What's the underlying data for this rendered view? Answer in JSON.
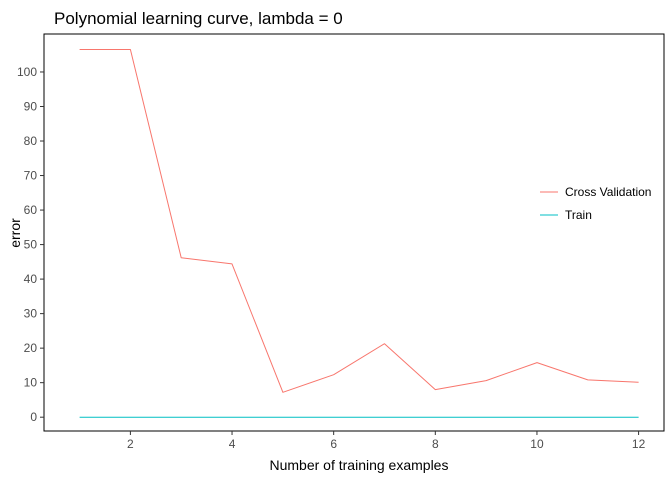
{
  "chart_data": {
    "type": "line",
    "title": "Polynomial learning curve, lambda = 0",
    "xlabel": "Number of training examples",
    "ylabel": "error",
    "x": [
      1,
      2,
      3,
      4,
      5,
      6,
      7,
      8,
      9,
      10,
      11,
      12
    ],
    "xlim": [
      0.3,
      12.5
    ],
    "ylim": [
      -4,
      111
    ],
    "xticks": [
      2,
      4,
      6,
      8,
      10,
      12
    ],
    "yticks": [
      0,
      10,
      20,
      30,
      40,
      50,
      60,
      70,
      80,
      90,
      100
    ],
    "grid": false,
    "legend_position": "right",
    "series": [
      {
        "name": "Cross Validation",
        "color": "#F8766D",
        "values": [
          106.5,
          106.5,
          46.2,
          44.4,
          7.2,
          12.3,
          21.3,
          8.0,
          10.6,
          15.8,
          10.8,
          10.1
        ]
      },
      {
        "name": "Train",
        "color": "#00BFC4",
        "values": [
          0,
          0,
          0,
          0,
          0,
          0,
          0,
          0,
          0,
          0,
          0,
          0
        ]
      }
    ]
  }
}
